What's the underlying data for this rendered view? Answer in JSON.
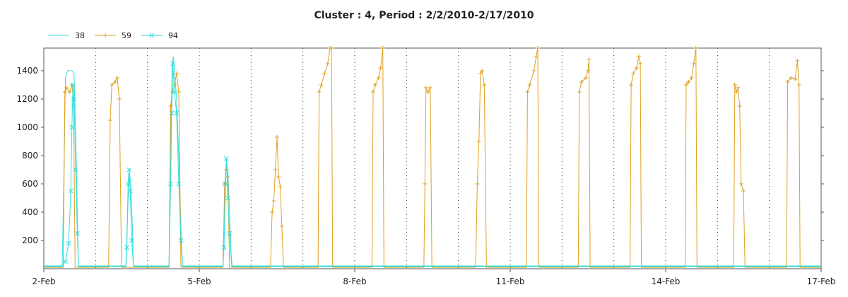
{
  "chart_data": {
    "type": "line",
    "title": "Cluster : 4, Period : 2/2/2010-2/17/2010",
    "xlabel": "",
    "ylabel": "",
    "x_start": "2010-02-02",
    "x_end": "2010-02-17",
    "xlim": [
      "2010-02-02",
      "2010-02-17"
    ],
    "ylim": [
      0,
      1560
    ],
    "x_tick_labels": [
      {
        "date": "2010-02-02",
        "label": "2-Feb"
      },
      {
        "date": "2010-02-05",
        "label": "5-Feb"
      },
      {
        "date": "2010-02-08",
        "label": "8-Feb"
      },
      {
        "date": "2010-02-11",
        "label": "11-Feb"
      },
      {
        "date": "2010-02-14",
        "label": "14-Feb"
      },
      {
        "date": "2010-02-17",
        "label": "17-Feb"
      }
    ],
    "y_ticks": [
      200,
      400,
      600,
      800,
      1000,
      1200,
      1400
    ],
    "grid": {
      "x_major": true,
      "x_minor": true,
      "y": false
    },
    "legend_position": "top-left",
    "series": [
      {
        "name": "38",
        "color": "#33dddd",
        "marker": "none",
        "points": [
          [
            "2010-02-02 00:00",
            15
          ],
          [
            "2010-02-02 08:30",
            15
          ],
          [
            "2010-02-02 09:15",
            600
          ],
          [
            "2010-02-02 10:00",
            1350
          ],
          [
            "2010-02-02 11:00",
            1400
          ],
          [
            "2010-02-02 13:00",
            1400
          ],
          [
            "2010-02-02 14:00",
            1380
          ],
          [
            "2010-02-02 15:00",
            800
          ],
          [
            "2010-02-02 16:00",
            15
          ],
          [
            "2010-02-03 14:00",
            15
          ],
          [
            "2010-02-03 14:45",
            350
          ],
          [
            "2010-02-03 15:30",
            700
          ],
          [
            "2010-02-03 16:15",
            600
          ],
          [
            "2010-02-03 17:00",
            300
          ],
          [
            "2010-02-03 17:30",
            15
          ],
          [
            "2010-02-04 10:00",
            15
          ],
          [
            "2010-02-04 10:45",
            900
          ],
          [
            "2010-02-04 11:30",
            1450
          ],
          [
            "2010-02-04 12:00",
            1500
          ],
          [
            "2010-02-04 12:45",
            1350
          ],
          [
            "2010-02-04 13:30",
            1200
          ],
          [
            "2010-02-04 14:30",
            800
          ],
          [
            "2010-02-04 15:30",
            300
          ],
          [
            "2010-02-04 16:15",
            15
          ],
          [
            "2010-02-05 11:00",
            15
          ],
          [
            "2010-02-05 11:45",
            350
          ],
          [
            "2010-02-05 12:30",
            770
          ],
          [
            "2010-02-05 13:15",
            700
          ],
          [
            "2010-02-05 14:00",
            400
          ],
          [
            "2010-02-05 14:45",
            100
          ],
          [
            "2010-02-05 15:15",
            15
          ],
          [
            "2010-02-17 00:00",
            15
          ]
        ]
      },
      {
        "name": "59",
        "color": "#e0a020",
        "marker": "plus",
        "points": [
          [
            "2010-02-02 00:00",
            10
          ],
          [
            "2010-02-02 09:00",
            10
          ],
          [
            "2010-02-02 09:45",
            1250
          ],
          [
            "2010-02-02 10:30",
            1280
          ],
          [
            "2010-02-02 12:00",
            1250
          ],
          [
            "2010-02-02 13:00",
            1300
          ],
          [
            "2010-02-02 13:45",
            1200
          ],
          [
            "2010-02-02 14:30",
            10
          ],
          [
            "2010-02-03 06:00",
            10
          ],
          [
            "2010-02-03 06:45",
            1050
          ],
          [
            "2010-02-03 07:30",
            1300
          ],
          [
            "2010-02-03 09:00",
            1320
          ],
          [
            "2010-02-03 10:00",
            1350
          ],
          [
            "2010-02-03 11:00",
            1200
          ],
          [
            "2010-02-03 12:00",
            10
          ],
          [
            "2010-02-04 10:00",
            10
          ],
          [
            "2010-02-04 10:45",
            1150
          ],
          [
            "2010-02-04 11:30",
            1250
          ],
          [
            "2010-02-04 12:30",
            1300
          ],
          [
            "2010-02-04 13:30",
            1380
          ],
          [
            "2010-02-04 14:30",
            1250
          ],
          [
            "2010-02-04 15:30",
            10
          ],
          [
            "2010-02-05 11:00",
            10
          ],
          [
            "2010-02-05 11:45",
            600
          ],
          [
            "2010-02-05 12:30",
            700
          ],
          [
            "2010-02-05 13:15",
            650
          ],
          [
            "2010-02-05 14:00",
            10
          ],
          [
            "2010-02-06 09:00",
            10
          ],
          [
            "2010-02-06 09:45",
            400
          ],
          [
            "2010-02-06 10:30",
            480
          ],
          [
            "2010-02-06 11:15",
            700
          ],
          [
            "2010-02-06 12:00",
            930
          ],
          [
            "2010-02-06 12:45",
            650
          ],
          [
            "2010-02-06 13:30",
            580
          ],
          [
            "2010-02-06 14:15",
            300
          ],
          [
            "2010-02-06 15:00",
            10
          ],
          [
            "2010-02-07 07:00",
            10
          ],
          [
            "2010-02-07 07:30",
            1250
          ],
          [
            "2010-02-07 08:30",
            1300
          ],
          [
            "2010-02-07 10:00",
            1380
          ],
          [
            "2010-02-07 11:30",
            1450
          ],
          [
            "2010-02-07 12:30",
            1560
          ],
          [
            "2010-02-07 13:15",
            1560
          ],
          [
            "2010-02-07 13:45",
            10
          ],
          [
            "2010-02-08 08:00",
            10
          ],
          [
            "2010-02-08 08:30",
            1250
          ],
          [
            "2010-02-08 09:30",
            1300
          ],
          [
            "2010-02-08 11:00",
            1350
          ],
          [
            "2010-02-08 12:00",
            1420
          ],
          [
            "2010-02-08 13:00",
            1560
          ],
          [
            "2010-02-08 13:30",
            10
          ],
          [
            "2010-02-09 08:00",
            10
          ],
          [
            "2010-02-09 08:30",
            600
          ],
          [
            "2010-02-09 09:00",
            1280
          ],
          [
            "2010-02-09 10:00",
            1250
          ],
          [
            "2010-02-09 11:00",
            1280
          ],
          [
            "2010-02-09 11:45",
            10
          ],
          [
            "2010-02-10 08:00",
            10
          ],
          [
            "2010-02-10 08:45",
            600
          ],
          [
            "2010-02-10 09:30",
            900
          ],
          [
            "2010-02-10 10:15",
            1380
          ],
          [
            "2010-02-10 11:00",
            1400
          ],
          [
            "2010-02-10 12:00",
            1300
          ],
          [
            "2010-02-10 13:00",
            10
          ],
          [
            "2010-02-11 07:30",
            10
          ],
          [
            "2010-02-11 08:00",
            1250
          ],
          [
            "2010-02-11 09:00",
            1300
          ],
          [
            "2010-02-11 11:00",
            1400
          ],
          [
            "2010-02-11 12:00",
            1500
          ],
          [
            "2010-02-11 12:45",
            1560
          ],
          [
            "2010-02-11 13:15",
            10
          ],
          [
            "2010-02-12 07:30",
            10
          ],
          [
            "2010-02-12 08:00",
            1250
          ],
          [
            "2010-02-12 09:00",
            1320
          ],
          [
            "2010-02-12 11:00",
            1350
          ],
          [
            "2010-02-12 12:00",
            1400
          ],
          [
            "2010-02-12 12:30",
            1480
          ],
          [
            "2010-02-12 13:00",
            10
          ],
          [
            "2010-02-13 07:30",
            10
          ],
          [
            "2010-02-13 08:00",
            1300
          ],
          [
            "2010-02-13 09:00",
            1380
          ],
          [
            "2010-02-13 10:30",
            1420
          ],
          [
            "2010-02-13 11:30",
            1500
          ],
          [
            "2010-02-13 12:15",
            1450
          ],
          [
            "2010-02-13 12:45",
            10
          ],
          [
            "2010-02-14 09:00",
            10
          ],
          [
            "2010-02-14 09:30",
            1300
          ],
          [
            "2010-02-14 10:30",
            1320
          ],
          [
            "2010-02-14 12:00",
            1350
          ],
          [
            "2010-02-14 13:00",
            1450
          ],
          [
            "2010-02-14 14:00",
            1560
          ],
          [
            "2010-02-14 14:30",
            10
          ],
          [
            "2010-02-15 07:30",
            10
          ],
          [
            "2010-02-15 08:00",
            1300
          ],
          [
            "2010-02-15 08:45",
            1250
          ],
          [
            "2010-02-15 09:30",
            1280
          ],
          [
            "2010-02-15 10:15",
            1150
          ],
          [
            "2010-02-15 11:00",
            600
          ],
          [
            "2010-02-15 12:00",
            550
          ],
          [
            "2010-02-15 12:45",
            10
          ],
          [
            "2010-02-16 08:00",
            10
          ],
          [
            "2010-02-16 08:30",
            1320
          ],
          [
            "2010-02-16 10:00",
            1350
          ],
          [
            "2010-02-16 12:00",
            1340
          ],
          [
            "2010-02-16 13:00",
            1470
          ],
          [
            "2010-02-16 13:45",
            1300
          ],
          [
            "2010-02-16 14:15",
            10
          ],
          [
            "2010-02-17 00:00",
            10
          ]
        ]
      },
      {
        "name": "94",
        "color": "#33dddd",
        "marker": "x",
        "points": [
          [
            "2010-02-02 00:00",
            20
          ],
          [
            "2010-02-02 08:30",
            20
          ],
          [
            "2010-02-02 10:00",
            50
          ],
          [
            "2010-02-02 11:30",
            180
          ],
          [
            "2010-02-02 12:30",
            550
          ],
          [
            "2010-02-02 13:00",
            1000
          ],
          [
            "2010-02-02 13:30",
            1300
          ],
          [
            "2010-02-02 14:00",
            1200
          ],
          [
            "2010-02-02 14:45",
            700
          ],
          [
            "2010-02-02 15:30",
            250
          ],
          [
            "2010-02-02 16:00",
            20
          ],
          [
            "2010-02-03 14:00",
            20
          ],
          [
            "2010-02-03 14:30",
            150
          ],
          [
            "2010-02-03 15:00",
            600
          ],
          [
            "2010-02-03 15:30",
            700
          ],
          [
            "2010-02-03 16:00",
            550
          ],
          [
            "2010-02-03 16:45",
            200
          ],
          [
            "2010-02-03 17:30",
            20
          ],
          [
            "2010-02-04 10:00",
            20
          ],
          [
            "2010-02-04 10:45",
            600
          ],
          [
            "2010-02-04 11:15",
            1100
          ],
          [
            "2010-02-04 11:45",
            1450
          ],
          [
            "2010-02-04 12:30",
            1250
          ],
          [
            "2010-02-04 13:30",
            1100
          ],
          [
            "2010-02-04 14:30",
            600
          ],
          [
            "2010-02-04 15:30",
            200
          ],
          [
            "2010-02-04 16:15",
            20
          ],
          [
            "2010-02-05 11:00",
            20
          ],
          [
            "2010-02-05 11:30",
            150
          ],
          [
            "2010-02-05 12:00",
            600
          ],
          [
            "2010-02-05 12:30",
            780
          ],
          [
            "2010-02-05 13:15",
            500
          ],
          [
            "2010-02-05 14:00",
            250
          ],
          [
            "2010-02-05 15:00",
            20
          ],
          [
            "2010-02-17 00:00",
            20
          ]
        ]
      }
    ]
  }
}
